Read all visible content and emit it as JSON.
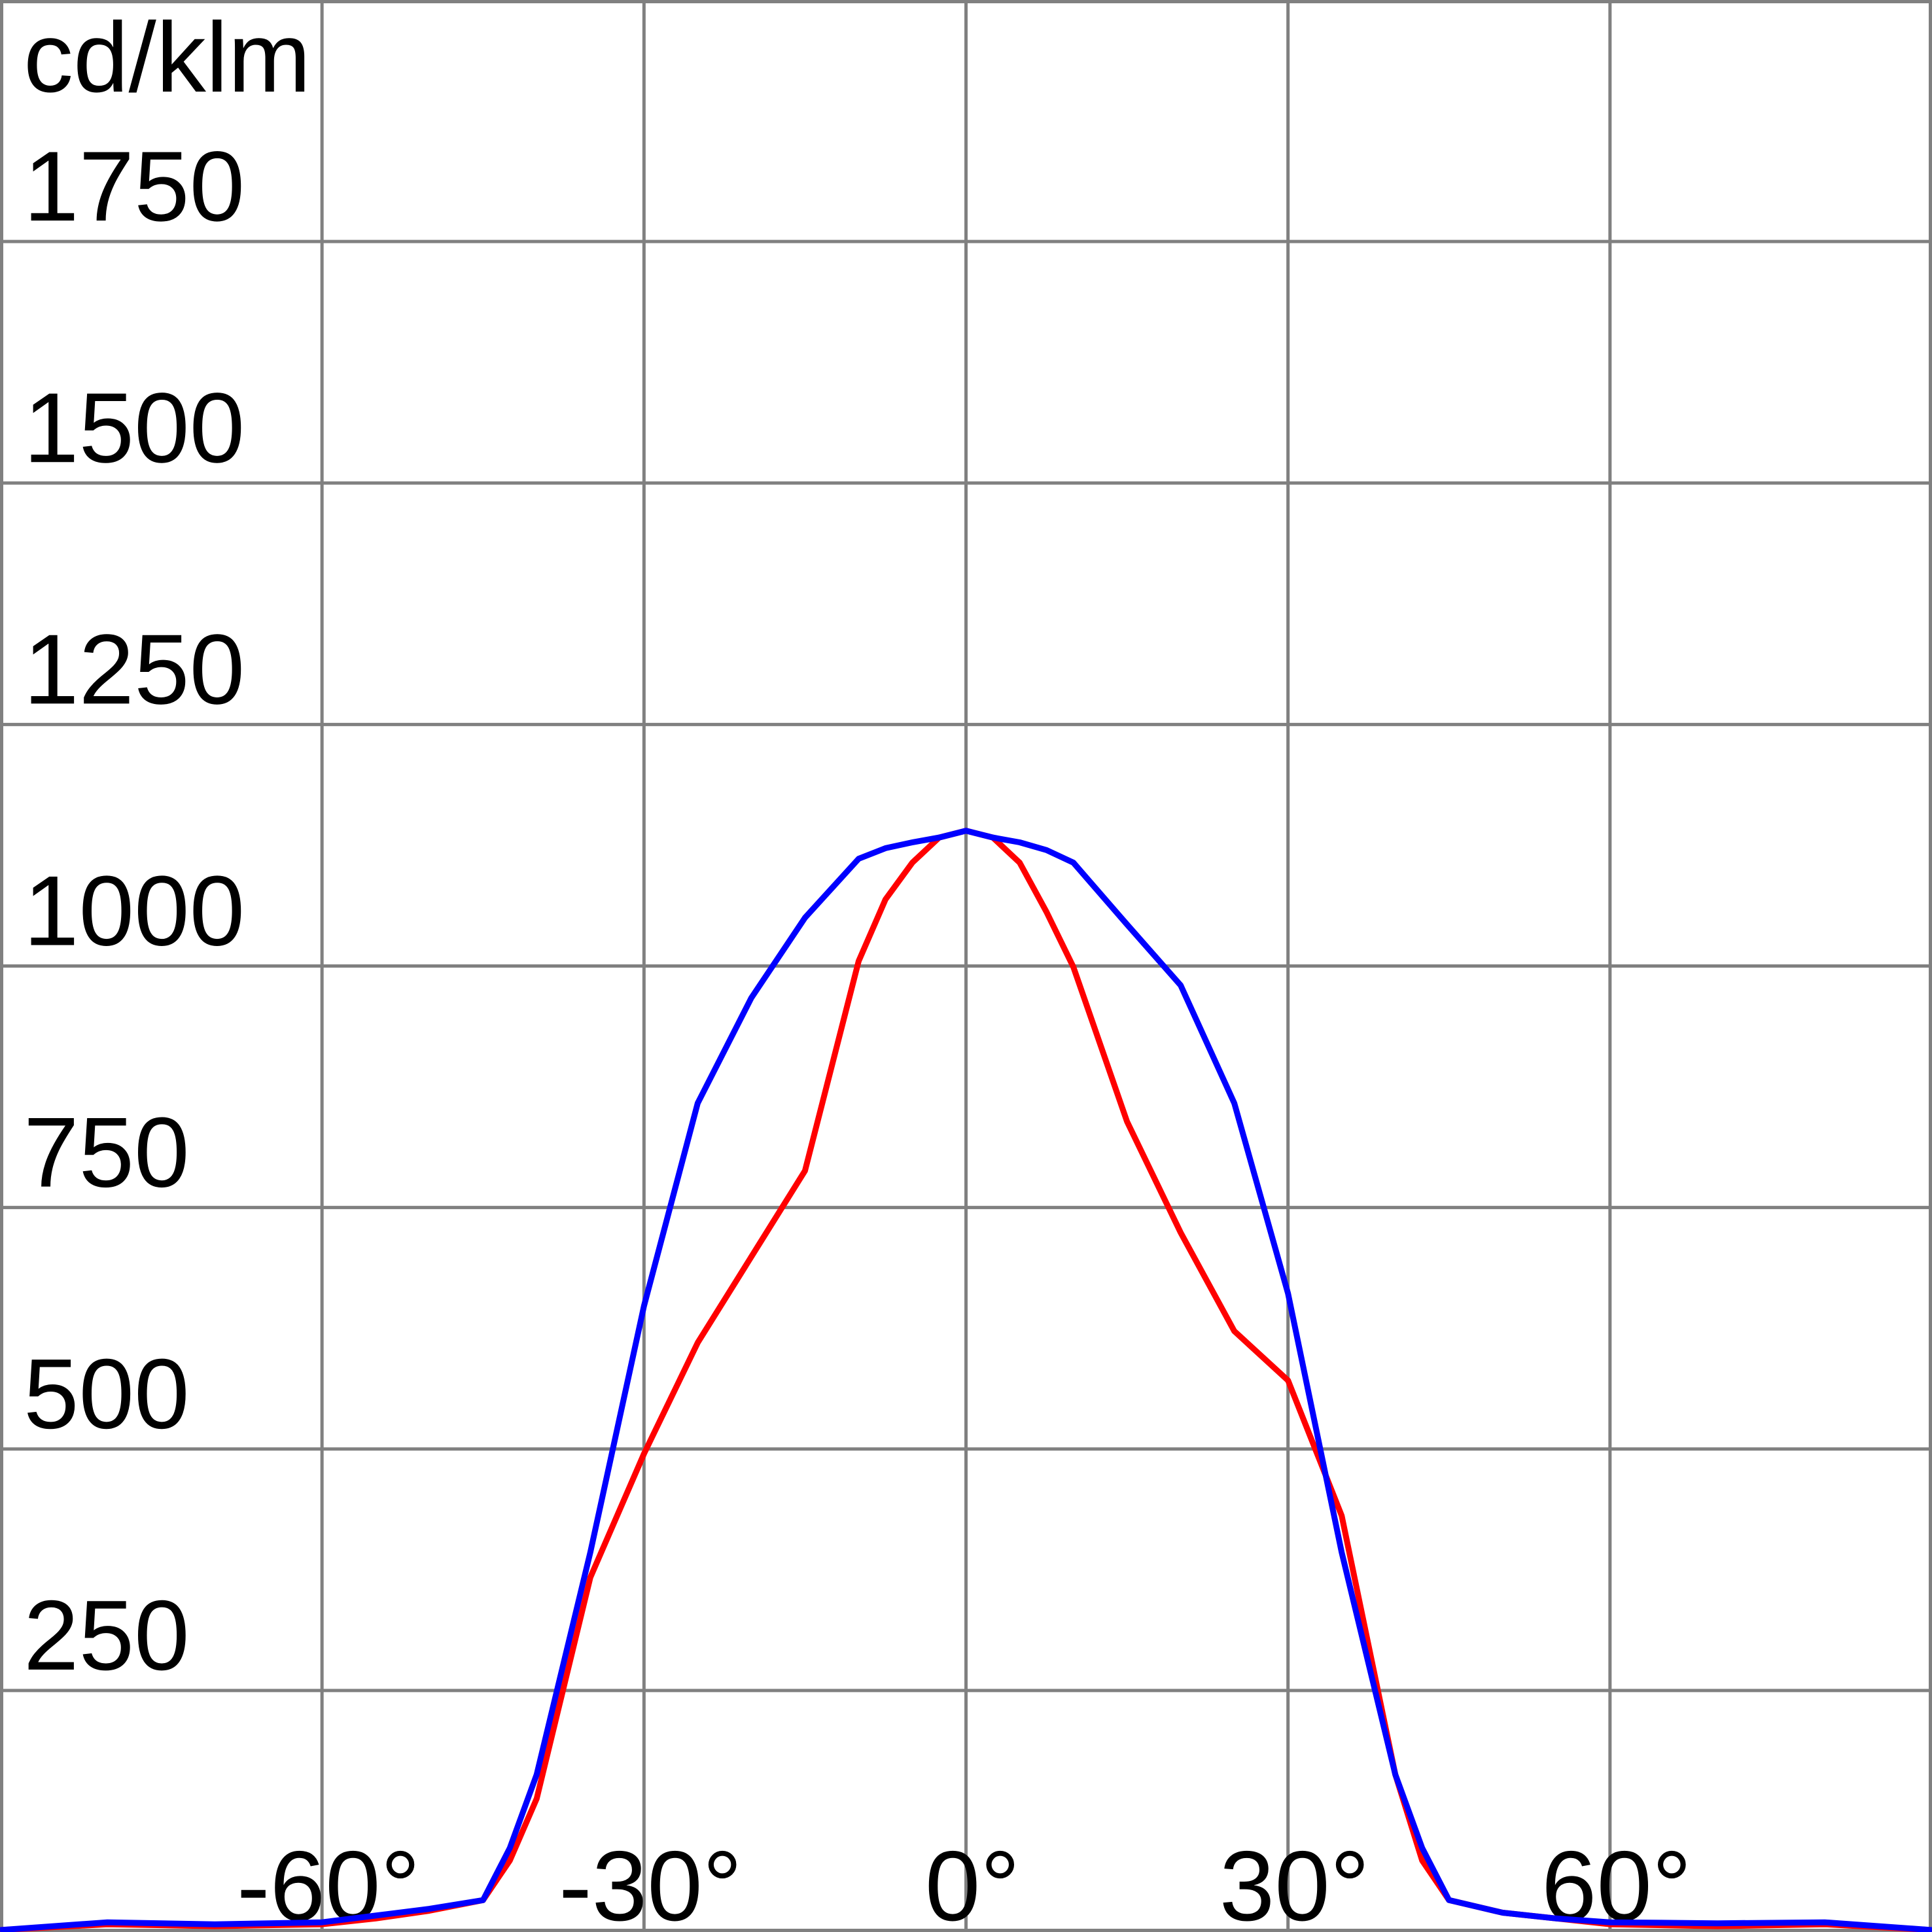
{
  "chart_data": {
    "type": "line",
    "y_label": "cd/klm",
    "x": [
      -90,
      -80,
      -70,
      -60,
      -55,
      -50,
      -45,
      -42.5,
      -40,
      -35,
      -30,
      -25,
      -20,
      -15,
      -10,
      -7.5,
      -5,
      -2.5,
      0,
      2.5,
      5,
      7.5,
      10,
      15,
      20,
      25,
      30,
      35,
      40,
      42.5,
      45,
      50,
      55,
      60,
      70,
      80,
      90
    ],
    "series": [
      {
        "color": "#ff0000",
        "values": [
          2,
          8,
          6,
          8,
          14,
          22,
          33,
          74,
          138,
          367,
          495,
          610,
          699,
          788,
          1005,
          1069,
          1107,
          1133,
          1140,
          1133,
          1107,
          1056,
          999,
          839,
          724,
          622,
          571,
          431,
          163,
          74,
          33,
          20,
          14,
          8,
          6,
          8,
          2
        ]
      },
      {
        "color": "#0000ff",
        "values": [
          2,
          10,
          8,
          10,
          17,
          24,
          33,
          87,
          163,
          393,
          648,
          858,
          967,
          1050,
          1111,
          1122,
          1128,
          1133,
          1140,
          1133,
          1128,
          1120,
          1107,
          1043,
          980,
          858,
          661,
          393,
          163,
          87,
          33,
          20,
          14,
          10,
          9,
          10,
          2
        ]
      }
    ],
    "xlim": [
      -90,
      90
    ],
    "xticks": [
      {
        "value": -60,
        "label": "-60°"
      },
      {
        "value": -30,
        "label": "-30°"
      },
      {
        "value": 0,
        "label": "0°"
      },
      {
        "value": 30,
        "label": "30°"
      },
      {
        "value": 60,
        "label": "60°"
      }
    ],
    "ylim": [
      0,
      2000
    ],
    "yticks": [
      250,
      500,
      750,
      1000,
      1250,
      1500,
      1750
    ],
    "grid": true
  }
}
